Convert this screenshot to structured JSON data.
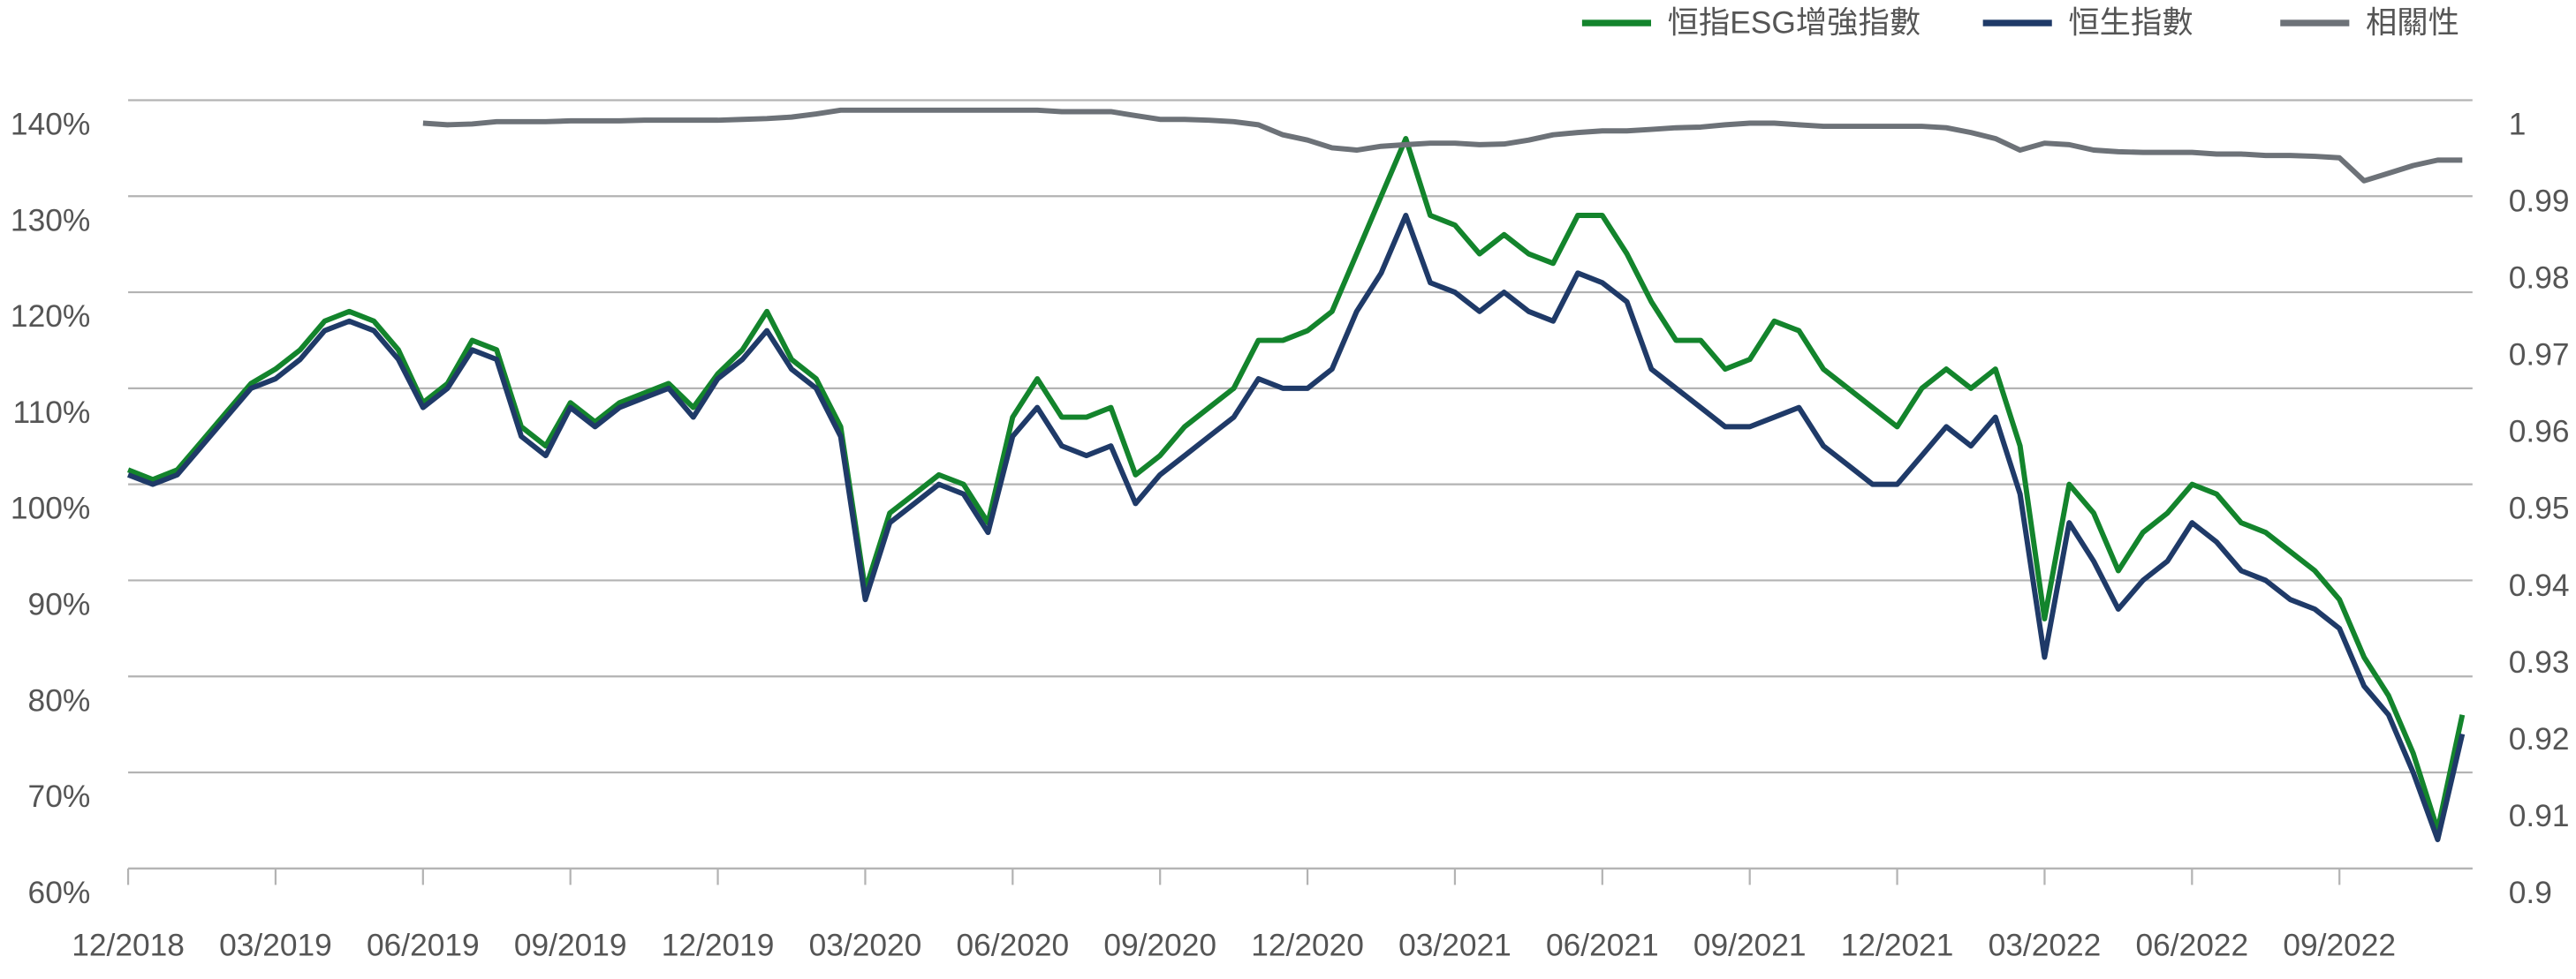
{
  "chart_data": {
    "type": "line",
    "categories": [
      "12/2018",
      null,
      null,
      null,
      null,
      null,
      "03/2019",
      null,
      null,
      null,
      null,
      null,
      "06/2019",
      null,
      null,
      null,
      null,
      null,
      "09/2019",
      null,
      null,
      null,
      null,
      null,
      "12/2019",
      null,
      null,
      null,
      null,
      null,
      "03/2020",
      null,
      null,
      null,
      null,
      null,
      "06/2020",
      null,
      null,
      null,
      null,
      null,
      "09/2020",
      null,
      null,
      null,
      null,
      null,
      "12/2020",
      null,
      null,
      null,
      null,
      null,
      "03/2021",
      null,
      null,
      null,
      null,
      null,
      "06/2021",
      null,
      null,
      null,
      null,
      null,
      "09/2021",
      null,
      null,
      null,
      null,
      null,
      "12/2021",
      null,
      null,
      null,
      null,
      null,
      "03/2022",
      null,
      null,
      null,
      null,
      null,
      "06/2022",
      null,
      null,
      null,
      null,
      null,
      "09/2022",
      null,
      null,
      null,
      null,
      null
    ],
    "series": [
      {
        "name": "恒指ESG增強指數",
        "color": "#13842c",
        "axis": "y",
        "values": [
          101.5,
          100.5,
          101.5,
          104.5,
          107.5,
          110.5,
          112,
          114,
          117,
          118,
          117,
          114,
          108.5,
          110.5,
          115,
          114,
          106,
          104,
          108.5,
          106.5,
          108.5,
          109.5,
          110.5,
          108,
          111.5,
          114,
          118,
          113,
          111,
          106,
          89,
          97,
          99,
          101,
          100,
          96,
          107,
          111,
          107,
          107,
          108,
          101,
          103,
          106,
          108,
          110,
          115,
          115,
          116,
          118,
          124,
          130,
          136,
          128,
          127,
          124,
          126,
          124,
          123,
          128,
          128,
          124,
          119,
          115,
          115,
          112,
          113,
          117,
          116,
          112,
          110,
          108,
          106,
          110,
          112,
          110,
          112,
          104,
          86,
          100,
          97,
          91,
          95,
          97,
          100,
          99,
          96,
          95,
          93,
          91,
          88,
          82,
          78,
          72,
          64,
          76
        ]
      },
      {
        "name": "恒生指數",
        "color": "#1f3a68",
        "axis": "y",
        "values": [
          101,
          100,
          101,
          104,
          107,
          110,
          111,
          113,
          116,
          117,
          116,
          113,
          108,
          110,
          114,
          113,
          105,
          103,
          108,
          106,
          108,
          109,
          110,
          107,
          111,
          113,
          116,
          112,
          110,
          105,
          88,
          96,
          98,
          100,
          99,
          95,
          105,
          108,
          104,
          103,
          104,
          98,
          101,
          103,
          105,
          107,
          111,
          110,
          110,
          112,
          118,
          122,
          128,
          121,
          120,
          118,
          120,
          118,
          117,
          122,
          121,
          119,
          112,
          110,
          108,
          106,
          106,
          107,
          108,
          104,
          102,
          100,
          100,
          103,
          106,
          104,
          107,
          99,
          82,
          96,
          92,
          87,
          90,
          92,
          96,
          94,
          91,
          90,
          88,
          87,
          85,
          79,
          76,
          70,
          63,
          74
        ]
      },
      {
        "name": "相關性",
        "color": "#6d7278",
        "axis": "y2",
        "values": [
          null,
          null,
          null,
          null,
          null,
          null,
          null,
          null,
          null,
          null,
          null,
          null,
          0.997,
          0.9968,
          0.9969,
          0.9972,
          0.9972,
          0.9972,
          0.9973,
          0.9973,
          0.9973,
          0.9974,
          0.9974,
          0.9974,
          0.9974,
          0.9975,
          0.9976,
          0.9978,
          0.9982,
          0.9987,
          0.9987,
          0.9987,
          0.9987,
          0.9987,
          0.9987,
          0.9987,
          0.9987,
          0.9987,
          0.9985,
          0.9985,
          0.9985,
          0.998,
          0.9975,
          0.9975,
          0.9974,
          0.9972,
          0.9968,
          0.9955,
          0.9948,
          0.9938,
          0.9935,
          0.994,
          0.9942,
          0.9944,
          0.9944,
          0.9942,
          0.9943,
          0.9948,
          0.9955,
          0.9958,
          0.996,
          0.996,
          0.9962,
          0.9964,
          0.9965,
          0.9968,
          0.997,
          0.997,
          0.9968,
          0.9966,
          0.9966,
          0.9966,
          0.9966,
          0.9966,
          0.9964,
          0.9958,
          0.995,
          0.9935,
          0.9944,
          0.9942,
          0.9935,
          0.9933,
          0.9932,
          0.9932,
          0.9932,
          0.993,
          0.993,
          0.9928,
          0.9928,
          0.9927,
          0.9925,
          0.9895,
          0.9905,
          0.9915,
          0.9922,
          0.9922
        ]
      }
    ],
    "ylim": [
      60,
      140
    ],
    "yticks": [
      {
        "value": 60,
        "label": "60%"
      },
      {
        "value": 70,
        "label": "70%"
      },
      {
        "value": 80,
        "label": "80%"
      },
      {
        "value": 90,
        "label": "90%"
      },
      {
        "value": 100,
        "label": "100%"
      },
      {
        "value": 110,
        "label": "110%"
      },
      {
        "value": 120,
        "label": "120%"
      },
      {
        "value": 130,
        "label": "130%"
      },
      {
        "value": 140,
        "label": "140%"
      }
    ],
    "y2lim": [
      0.9,
      1
    ],
    "y2ticks": [
      0.9,
      0.91,
      0.92,
      0.93,
      0.94,
      0.95,
      0.96,
      0.97,
      0.98,
      0.99,
      1
    ],
    "grid": true,
    "legend": "top-right"
  }
}
